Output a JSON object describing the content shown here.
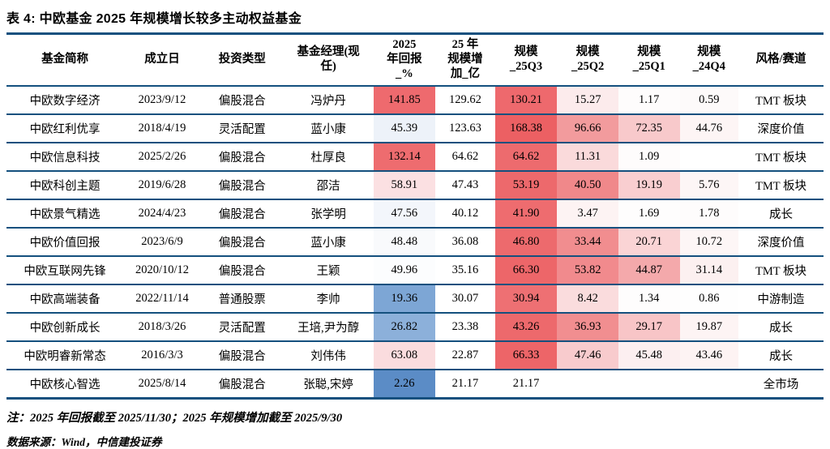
{
  "title": "表 4: 中欧基金 2025 年规模增长较多主动权益基金",
  "notes": {
    "cutoff": "注：2025 年回报截至 2025/11/30；2025 年规模增加截至 2025/9/30",
    "source": "数据来源：Wind，中信建投证券"
  },
  "colors": {
    "rule_line": "#14507e",
    "heat_red_max": "#ec6063",
    "heat_blue_max": "#5b8cc6",
    "background": "#ffffff"
  },
  "chart_data": {
    "type": "table",
    "title": "表 4: 中欧基金 2025 年规模增长较多主动权益基金",
    "columns": [
      {
        "key": "name",
        "label": "基金简称"
      },
      {
        "key": "date",
        "label": "成立日"
      },
      {
        "key": "type",
        "label": "投资类型"
      },
      {
        "key": "manager",
        "label": "基金经理(现\n任)"
      },
      {
        "key": "ret2025",
        "label": "2025\n年回报\n_%"
      },
      {
        "key": "add25",
        "label": "25 年\n规模增\n加_亿"
      },
      {
        "key": "q3",
        "label": "规模\n_25Q3"
      },
      {
        "key": "q2",
        "label": "规模\n_25Q2"
      },
      {
        "key": "q1",
        "label": "规模\n_25Q1"
      },
      {
        "key": "q4",
        "label": "规模\n_24Q4"
      },
      {
        "key": "style",
        "label": "风格/赛道"
      }
    ],
    "rows": [
      {
        "name": "中欧数字经济",
        "date": "2023/9/12",
        "type": "偏股混合",
        "manager": "冯炉丹",
        "ret2025": {
          "v": "141.85",
          "bg": "#ee6a6e"
        },
        "add25": "129.62",
        "q3": {
          "v": "130.21",
          "bg": "#ee696d"
        },
        "q2": {
          "v": "15.27",
          "bg": "#fcebec"
        },
        "q1": {
          "v": "1.17",
          "bg": "#fefcfc"
        },
        "q4": {
          "v": "0.59",
          "bg": "#fdfafa"
        },
        "style": "TMT 板块"
      },
      {
        "name": "中欧红利优享",
        "date": "2018/4/19",
        "type": "灵活配置",
        "manager": "蓝小康",
        "ret2025": {
          "v": "45.39",
          "bg": "#edf2f9"
        },
        "add25": "123.63",
        "q3": {
          "v": "168.38",
          "bg": "#ec6063"
        },
        "q2": {
          "v": "96.66",
          "bg": "#f29b9d"
        },
        "q1": {
          "v": "72.35",
          "bg": "#f8c9cb"
        },
        "q4": {
          "v": "44.76",
          "bg": "#fdf5f5"
        },
        "style": "深度价值"
      },
      {
        "name": "中欧信息科技",
        "date": "2025/2/26",
        "type": "偏股混合",
        "manager": "杜厚良",
        "ret2025": {
          "v": "132.14",
          "bg": "#ee6c6f"
        },
        "add25": "64.62",
        "q3": {
          "v": "64.62",
          "bg": "#ed6b6e"
        },
        "q2": {
          "v": "11.31",
          "bg": "#fadadb"
        },
        "q1": {
          "v": "1.09",
          "bg": "#fefcfc"
        },
        "q4": "",
        "style": "TMT 板块"
      },
      {
        "name": "中欧科创主题",
        "date": "2019/6/28",
        "type": "偏股混合",
        "manager": "邵洁",
        "ret2025": {
          "v": "58.91",
          "bg": "#fbe0e2"
        },
        "add25": "47.43",
        "q3": {
          "v": "53.19",
          "bg": "#ed696c"
        },
        "q2": {
          "v": "40.50",
          "bg": "#f0888a"
        },
        "q1": {
          "v": "19.19",
          "bg": "#f9ced0"
        },
        "q4": {
          "v": "5.76",
          "bg": "#fdf6f6"
        },
        "style": "TMT 板块"
      },
      {
        "name": "中欧景气精选",
        "date": "2024/4/23",
        "type": "偏股混合",
        "manager": "张学明",
        "ret2025": {
          "v": "47.56",
          "bg": "#f3f6fb"
        },
        "add25": "40.12",
        "q3": {
          "v": "41.90",
          "bg": "#ee6c6f"
        },
        "q2": {
          "v": "3.47",
          "bg": "#fdf3f3"
        },
        "q1": {
          "v": "1.69",
          "bg": "#fefdfd"
        },
        "q4": {
          "v": "1.78",
          "bg": "#fefcfc"
        },
        "style": "成长"
      },
      {
        "name": "中欧价值回报",
        "date": "2023/6/9",
        "type": "偏股混合",
        "manager": "蓝小康",
        "ret2025": {
          "v": "48.48",
          "bg": "#f9fafc"
        },
        "add25": "36.08",
        "q3": {
          "v": "46.80",
          "bg": "#ed6a6d"
        },
        "q2": {
          "v": "33.44",
          "bg": "#f18d8f"
        },
        "q1": {
          "v": "20.71",
          "bg": "#fad4d5"
        },
        "q4": {
          "v": "10.72",
          "bg": "#fdf6f6"
        },
        "style": "深度价值"
      },
      {
        "name": "中欧互联网先锋",
        "date": "2020/10/12",
        "type": "偏股混合",
        "manager": "王颖",
        "ret2025": {
          "v": "49.96",
          "bg": "#fcfdfe"
        },
        "add25": "35.16",
        "q3": {
          "v": "66.30",
          "bg": "#ed6669"
        },
        "q2": {
          "v": "53.82",
          "bg": "#f18a8d"
        },
        "q1": {
          "v": "44.87",
          "bg": "#f4a9ab"
        },
        "q4": {
          "v": "31.14",
          "bg": "#fcf0f0"
        },
        "style": "TMT 板块"
      },
      {
        "name": "中欧高端装备",
        "date": "2022/11/14",
        "type": "普通股票",
        "manager": "李帅",
        "ret2025": {
          "v": "19.36",
          "bg": "#7da6d5"
        },
        "add25": "30.07",
        "q3": {
          "v": "30.94",
          "bg": "#ee7073"
        },
        "q2": {
          "v": "8.42",
          "bg": "#fadcdd"
        },
        "q1": {
          "v": "1.34",
          "bg": "#fefdfd"
        },
        "q4": {
          "v": "0.86",
          "bg": "#fefefe"
        },
        "style": "中游制造"
      },
      {
        "name": "中欧创新成长",
        "date": "2018/3/26",
        "type": "灵活配置",
        "manager": "王培,尹为醇",
        "ret2025": {
          "v": "26.82",
          "bg": "#8cb0da"
        },
        "add25": "23.38",
        "q3": {
          "v": "43.26",
          "bg": "#ed696c"
        },
        "q2": {
          "v": "36.93",
          "bg": "#f18e90"
        },
        "q1": {
          "v": "29.17",
          "bg": "#f8c5c7"
        },
        "q4": {
          "v": "19.87",
          "bg": "#fdf4f4"
        },
        "style": "成长"
      },
      {
        "name": "中欧明睿新常态",
        "date": "2016/3/3",
        "type": "偏股混合",
        "manager": "刘伟伟",
        "ret2025": {
          "v": "63.08",
          "bg": "#fadcde"
        },
        "add25": "22.87",
        "q3": {
          "v": "66.33",
          "bg": "#ed6568"
        },
        "q2": {
          "v": "47.46",
          "bg": "#f8cbcd"
        },
        "q1": {
          "v": "45.48",
          "bg": "#fceff0"
        },
        "q4": {
          "v": "43.46",
          "bg": "#fdf3f3"
        },
        "style": "成长"
      },
      {
        "name": "中欧核心智选",
        "date": "2025/8/14",
        "type": "偏股混合",
        "manager": "张聪,宋婷",
        "ret2025": {
          "v": "2.26",
          "bg": "#5b8cc6"
        },
        "add25": "21.17",
        "q3": {
          "v": "21.17",
          "bg": "#ffffff"
        },
        "q2": "",
        "q1": "",
        "q4": "",
        "style": "全市场"
      }
    ]
  }
}
